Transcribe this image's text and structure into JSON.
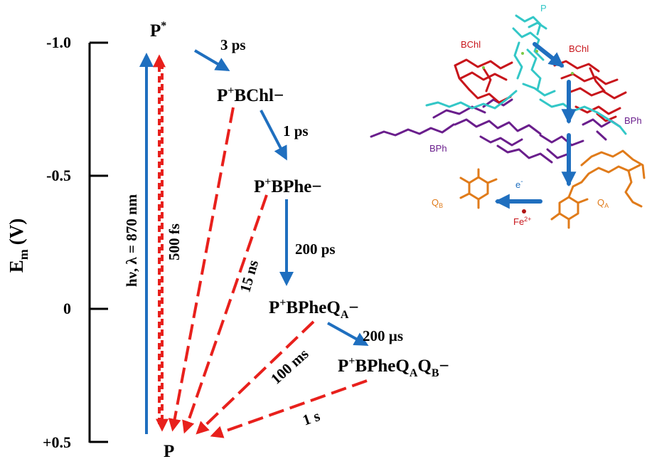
{
  "axis": {
    "label_main": "E",
    "label_sub": "m",
    "label_unit": "(V)",
    "ticks": [
      "-1.0",
      "-0.5",
      "0",
      "+0.5"
    ]
  },
  "states": {
    "p_star": "P",
    "p_star_sup": "*",
    "p_bchl_a": "P",
    "p_bchl_sup": "+",
    "p_bchl_b": "BChl",
    "p_bchl_minus": "−",
    "p_bphe_a": "P",
    "p_bphe_sup": "+",
    "p_bphe_b": "BPhe",
    "p_bphe_minus": "−",
    "p_qa_a": "P",
    "p_qa_sup": "+",
    "p_qa_b": "BPheQ",
    "p_qa_sub": "A",
    "p_qa_minus": "−",
    "p_qb_a": "P",
    "p_qb_sup": "+",
    "p_qb_b": "BPheQ",
    "p_qb_sub1": "A",
    "p_qb_c": "Q",
    "p_qb_sub2": "B",
    "p_qb_minus": "−",
    "ground": "P"
  },
  "rates": {
    "excitation": "hν, λ = 870 nm",
    "forward_1": "3 ps",
    "forward_2": "1 ps",
    "forward_3": "200 ps",
    "forward_4": "200 µs",
    "decay_pstar": "500 fs",
    "decay_bphe": "15 ns",
    "decay_qa": "100 ms",
    "decay_qb": "1 s"
  },
  "structure": {
    "p": "P",
    "bchl_left": "BChl",
    "bchl_right": "BChl",
    "bph_left": "BPh",
    "bph_right": "BPh",
    "electron": "e",
    "electron_sup": "-",
    "qb": "Q",
    "qb_sub": "B",
    "qa": "Q",
    "qa_sub": "A",
    "fe": "Fe",
    "fe_sup": "2+"
  },
  "colors": {
    "forward_arrow": "#1f6fbf",
    "decay_arrow": "#e8201c",
    "p_pigment": "#33c7c7",
    "bchl_pigment": "#c8151b",
    "bph_pigment": "#6a1e8c",
    "quinone_pigment": "#e07b1a",
    "iron": "#b01515"
  }
}
